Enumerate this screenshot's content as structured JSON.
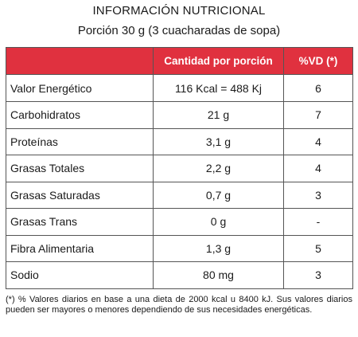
{
  "header": {
    "title": "INFORMACIÓN NUTRICIONAL",
    "subtitle": "Porción 30 g (3 cuacharadas de sopa)"
  },
  "table": {
    "columns": [
      "",
      "Cantidad por porción",
      "%VD (*)"
    ],
    "header_color": "#e0313f",
    "rows": [
      {
        "name": "Valor Energético",
        "qty": "116 Kcal = 488 Kj",
        "vd": "6"
      },
      {
        "name": "Carbohidratos",
        "qty": "21 g",
        "vd": "7"
      },
      {
        "name": "Proteínas",
        "qty": "3,1 g",
        "vd": "4"
      },
      {
        "name": "Grasas Totales",
        "qty": "2,2 g",
        "vd": "4"
      },
      {
        "name": "Grasas Saturadas",
        "qty": "0,7 g",
        "vd": "3"
      },
      {
        "name": "Grasas Trans",
        "qty": "0 g",
        "vd": "-"
      },
      {
        "name": "Fibra Alimentaria",
        "qty": "1,3 g",
        "vd": "5"
      },
      {
        "name": "Sodio",
        "qty": "80 mg",
        "vd": "3"
      }
    ]
  },
  "footnote": "(*) % Valores diarios en base a una dieta de 2000 kcal u 8400 kJ. Sus valores diarios pueden ser mayores o menores dependiendo de sus necesidades energéticas."
}
